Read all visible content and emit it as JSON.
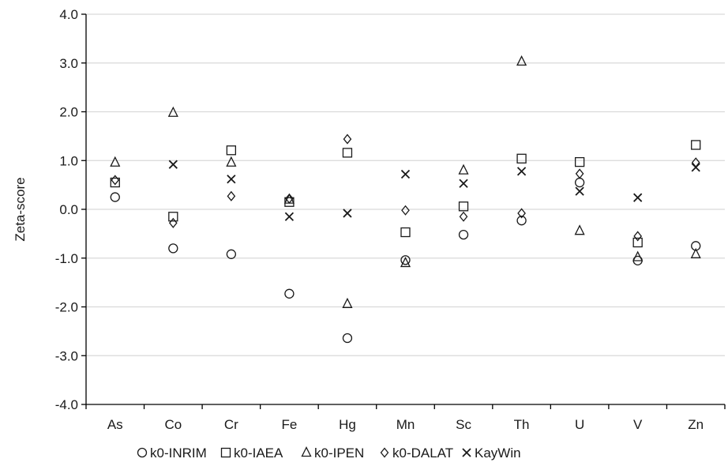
{
  "chart_data": {
    "type": "scatter",
    "title": "",
    "xlabel": "",
    "ylabel": "Zeta-score",
    "ylim": [
      -4.0,
      4.0
    ],
    "y_ticks": [
      "4.0",
      "3.0",
      "2.0",
      "1.0",
      "0.0",
      "-1.0",
      "-2.0",
      "-3.0",
      "-4.0"
    ],
    "y_tick_values": [
      4,
      3,
      2,
      1,
      0,
      -1,
      -2,
      -3,
      -4
    ],
    "grid": true,
    "legend_position": "bottom",
    "categories": [
      "As",
      "Co",
      "Cr",
      "Fe",
      "Hg",
      "Mn",
      "Sc",
      "Th",
      "U",
      "V",
      "Zn"
    ],
    "series": [
      {
        "name": "k0-INRIM",
        "marker": "circle",
        "values": [
          0.25,
          -0.8,
          -0.92,
          -1.73,
          -2.64,
          -1.04,
          -0.52,
          -0.23,
          0.55,
          -1.05,
          -0.75
        ]
      },
      {
        "name": "k0-IAEA",
        "marker": "square",
        "values": [
          0.55,
          -0.15,
          1.21,
          0.15,
          1.16,
          -0.47,
          0.06,
          1.04,
          0.97,
          -0.68,
          1.32
        ]
      },
      {
        "name": "k0-IPEN",
        "marker": "triangle",
        "values": [
          0.96,
          1.98,
          0.96,
          0.2,
          -1.94,
          -1.1,
          0.8,
          3.03,
          -0.44,
          -0.98,
          -0.92
        ]
      },
      {
        "name": "k0-DALAT",
        "marker": "diamond",
        "values": [
          0.6,
          -0.28,
          0.27,
          0.22,
          1.44,
          -0.02,
          -0.15,
          -0.08,
          0.73,
          -0.55,
          0.96
        ]
      },
      {
        "name": "KayWin",
        "marker": "x",
        "values": [
          null,
          0.92,
          0.62,
          -0.15,
          -0.08,
          0.72,
          0.53,
          0.78,
          0.37,
          0.24,
          0.86
        ]
      }
    ],
    "colors": {
      "marker": "#1a1a1a",
      "grid": "#d9d9d9",
      "axis": "#000000"
    }
  }
}
